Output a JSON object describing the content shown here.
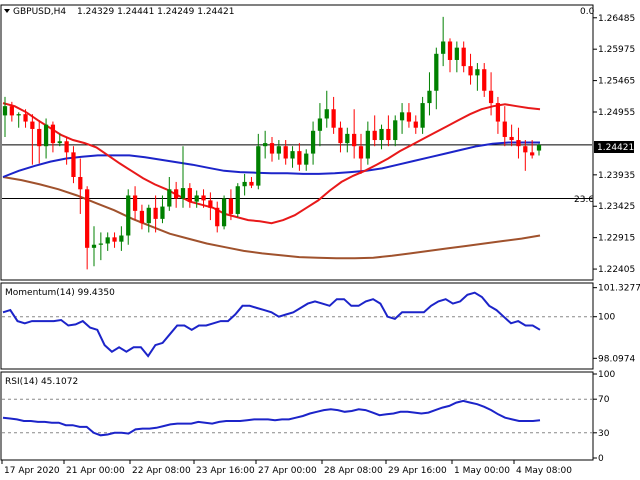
{
  "chart_data": [
    {
      "type": "candlestick",
      "header": {
        "symbol_timeframe": "GBPUSD,H4",
        "ohlc": "1.24329 1.24441 1.24249 1.24421"
      },
      "corner_value": "0.0",
      "level_label": "23.6",
      "current_price": "1.24421",
      "y_ticks": [
        "1.26485",
        "1.25975",
        "1.25465",
        "1.24955",
        "1.24421",
        "1.23935",
        "1.23425",
        "1.22915",
        "1.22405"
      ],
      "ylim": [
        1.2226,
        1.2666
      ],
      "levels": {
        "current": 1.24421,
        "fib_23_6": 1.2355
      },
      "candles": [
        {
          "o": 1.249,
          "h": 1.252,
          "l": 1.2455,
          "c": 1.2505
        },
        {
          "o": 1.2505,
          "h": 1.2512,
          "l": 1.248,
          "c": 1.249
        },
        {
          "o": 1.249,
          "h": 1.2495,
          "l": 1.247,
          "c": 1.2492
        },
        {
          "o": 1.2492,
          "h": 1.25,
          "l": 1.247,
          "c": 1.248
        },
        {
          "o": 1.248,
          "h": 1.2492,
          "l": 1.241,
          "c": 1.2468
        },
        {
          "o": 1.2468,
          "h": 1.2482,
          "l": 1.2412,
          "c": 1.244
        },
        {
          "o": 1.244,
          "h": 1.2485,
          "l": 1.242,
          "c": 1.2475
        },
        {
          "o": 1.2475,
          "h": 1.248,
          "l": 1.243,
          "c": 1.2445
        },
        {
          "o": 1.2445,
          "h": 1.246,
          "l": 1.244,
          "c": 1.2448
        },
        {
          "o": 1.2448,
          "h": 1.2455,
          "l": 1.241,
          "c": 1.243
        },
        {
          "o": 1.243,
          "h": 1.244,
          "l": 1.238,
          "c": 1.239
        },
        {
          "o": 1.239,
          "h": 1.242,
          "l": 1.233,
          "c": 1.237
        },
        {
          "o": 1.237,
          "h": 1.2375,
          "l": 1.224,
          "c": 1.2275
        },
        {
          "o": 1.2275,
          "h": 1.231,
          "l": 1.2245,
          "c": 1.228
        },
        {
          "o": 1.228,
          "h": 1.23,
          "l": 1.2255,
          "c": 1.2282
        },
        {
          "o": 1.2282,
          "h": 1.23,
          "l": 1.227,
          "c": 1.2292
        },
        {
          "o": 1.2292,
          "h": 1.23,
          "l": 1.2275,
          "c": 1.2285
        },
        {
          "o": 1.2285,
          "h": 1.231,
          "l": 1.227,
          "c": 1.2295
        },
        {
          "o": 1.2295,
          "h": 1.237,
          "l": 1.228,
          "c": 1.236
        },
        {
          "o": 1.236,
          "h": 1.2375,
          "l": 1.232,
          "c": 1.2335
        },
        {
          "o": 1.2335,
          "h": 1.2345,
          "l": 1.2305,
          "c": 1.2315
        },
        {
          "o": 1.2315,
          "h": 1.2345,
          "l": 1.23,
          "c": 1.234
        },
        {
          "o": 1.234,
          "h": 1.236,
          "l": 1.23,
          "c": 1.2322
        },
        {
          "o": 1.2322,
          "h": 1.236,
          "l": 1.2315,
          "c": 1.2342
        },
        {
          "o": 1.2342,
          "h": 1.239,
          "l": 1.2335,
          "c": 1.237
        },
        {
          "o": 1.237,
          "h": 1.2382,
          "l": 1.234,
          "c": 1.2355
        },
        {
          "o": 1.2355,
          "h": 1.244,
          "l": 1.234,
          "c": 1.2372
        },
        {
          "o": 1.2372,
          "h": 1.238,
          "l": 1.234,
          "c": 1.235
        },
        {
          "o": 1.235,
          "h": 1.2368,
          "l": 1.234,
          "c": 1.236
        },
        {
          "o": 1.236,
          "h": 1.237,
          "l": 1.234,
          "c": 1.2352
        },
        {
          "o": 1.2352,
          "h": 1.2365,
          "l": 1.232,
          "c": 1.234
        },
        {
          "o": 1.234,
          "h": 1.235,
          "l": 1.23,
          "c": 1.231
        },
        {
          "o": 1.231,
          "h": 1.236,
          "l": 1.2305,
          "c": 1.2355
        },
        {
          "o": 1.2355,
          "h": 1.237,
          "l": 1.232,
          "c": 1.233
        },
        {
          "o": 1.233,
          "h": 1.238,
          "l": 1.2325,
          "c": 1.2375
        },
        {
          "o": 1.2375,
          "h": 1.2395,
          "l": 1.236,
          "c": 1.2382
        },
        {
          "o": 1.2382,
          "h": 1.239,
          "l": 1.2372,
          "c": 1.2376
        },
        {
          "o": 1.2376,
          "h": 1.246,
          "l": 1.237,
          "c": 1.244
        },
        {
          "o": 1.244,
          "h": 1.2465,
          "l": 1.242,
          "c": 1.2445
        },
        {
          "o": 1.2445,
          "h": 1.2455,
          "l": 1.2415,
          "c": 1.2428
        },
        {
          "o": 1.2428,
          "h": 1.245,
          "l": 1.2418,
          "c": 1.244
        },
        {
          "o": 1.244,
          "h": 1.245,
          "l": 1.241,
          "c": 1.242
        },
        {
          "o": 1.242,
          "h": 1.244,
          "l": 1.2405,
          "c": 1.2432
        },
        {
          "o": 1.2432,
          "h": 1.2445,
          "l": 1.24,
          "c": 1.241
        },
        {
          "o": 1.241,
          "h": 1.2435,
          "l": 1.24,
          "c": 1.2428
        },
        {
          "o": 1.2428,
          "h": 1.248,
          "l": 1.241,
          "c": 1.2465
        },
        {
          "o": 1.2465,
          "h": 1.251,
          "l": 1.244,
          "c": 1.2485
        },
        {
          "o": 1.2485,
          "h": 1.253,
          "l": 1.247,
          "c": 1.25
        },
        {
          "o": 1.25,
          "h": 1.252,
          "l": 1.246,
          "c": 1.247
        },
        {
          "o": 1.247,
          "h": 1.248,
          "l": 1.243,
          "c": 1.2445
        },
        {
          "o": 1.2445,
          "h": 1.247,
          "l": 1.243,
          "c": 1.246
        },
        {
          "o": 1.246,
          "h": 1.25,
          "l": 1.242,
          "c": 1.244
        },
        {
          "o": 1.244,
          "h": 1.246,
          "l": 1.2395,
          "c": 1.242
        },
        {
          "o": 1.242,
          "h": 1.248,
          "l": 1.241,
          "c": 1.2465
        },
        {
          "o": 1.2465,
          "h": 1.249,
          "l": 1.244,
          "c": 1.245
        },
        {
          "o": 1.245,
          "h": 1.2475,
          "l": 1.2435,
          "c": 1.2468
        },
        {
          "o": 1.2468,
          "h": 1.249,
          "l": 1.244,
          "c": 1.245
        },
        {
          "o": 1.245,
          "h": 1.249,
          "l": 1.244,
          "c": 1.2482
        },
        {
          "o": 1.2482,
          "h": 1.251,
          "l": 1.246,
          "c": 1.2495
        },
        {
          "o": 1.2495,
          "h": 1.251,
          "l": 1.247,
          "c": 1.248
        },
        {
          "o": 1.248,
          "h": 1.249,
          "l": 1.246,
          "c": 1.247
        },
        {
          "o": 1.247,
          "h": 1.252,
          "l": 1.246,
          "c": 1.251
        },
        {
          "o": 1.251,
          "h": 1.256,
          "l": 1.249,
          "c": 1.253
        },
        {
          "o": 1.253,
          "h": 1.26,
          "l": 1.25,
          "c": 1.259
        },
        {
          "o": 1.259,
          "h": 1.265,
          "l": 1.257,
          "c": 1.261
        },
        {
          "o": 1.261,
          "h": 1.2615,
          "l": 1.256,
          "c": 1.258
        },
        {
          "o": 1.258,
          "h": 1.261,
          "l": 1.256,
          "c": 1.26
        },
        {
          "o": 1.26,
          "h": 1.261,
          "l": 1.256,
          "c": 1.257
        },
        {
          "o": 1.257,
          "h": 1.259,
          "l": 1.254,
          "c": 1.2555
        },
        {
          "o": 1.2555,
          "h": 1.2575,
          "l": 1.253,
          "c": 1.2565
        },
        {
          "o": 1.2565,
          "h": 1.2575,
          "l": 1.252,
          "c": 1.253
        },
        {
          "o": 1.253,
          "h": 1.256,
          "l": 1.249,
          "c": 1.251
        },
        {
          "o": 1.251,
          "h": 1.252,
          "l": 1.246,
          "c": 1.248
        },
        {
          "o": 1.248,
          "h": 1.2505,
          "l": 1.244,
          "c": 1.2455
        },
        {
          "o": 1.2455,
          "h": 1.2475,
          "l": 1.244,
          "c": 1.245
        },
        {
          "o": 1.245,
          "h": 1.247,
          "l": 1.242,
          "c": 1.244
        },
        {
          "o": 1.244,
          "h": 1.245,
          "l": 1.24,
          "c": 1.243
        },
        {
          "o": 1.243,
          "h": 1.245,
          "l": 1.242,
          "c": 1.2425
        },
        {
          "o": 1.24329,
          "h": 1.24441,
          "l": 1.24249,
          "c": 1.24421
        }
      ],
      "ma_fast": [
        1.251,
        1.2505,
        1.2495,
        1.2482,
        1.247,
        1.2458,
        1.245,
        1.2445,
        1.2438,
        1.2425,
        1.2412,
        1.24,
        1.2388,
        1.2378,
        1.237,
        1.236,
        1.235,
        1.2345,
        1.234,
        1.233,
        1.2325,
        1.232,
        1.2318,
        1.2315,
        1.232,
        1.2328,
        1.234,
        1.2352,
        1.2368,
        1.2382,
        1.2392,
        1.24,
        1.241,
        1.242,
        1.2432,
        1.2442,
        1.2452,
        1.2462,
        1.2472,
        1.2482,
        1.2492,
        1.25,
        1.2505,
        1.2508,
        1.2505,
        1.2502,
        1.25
      ],
      "ma_mid": [
        1.239,
        1.24,
        1.2408,
        1.2415,
        1.242,
        1.2423,
        1.2425,
        1.2425,
        1.2425,
        1.2422,
        1.2418,
        1.2414,
        1.241,
        1.2405,
        1.24,
        1.2398,
        1.2397,
        1.2396,
        1.2396,
        1.2395,
        1.2395,
        1.2396,
        1.2398,
        1.24,
        1.2404,
        1.241,
        1.2416,
        1.2422,
        1.2428,
        1.2434,
        1.244,
        1.2444,
        1.2446,
        1.2446,
        1.2446
      ],
      "ma_slow": [
        1.239,
        1.2385,
        1.2378,
        1.237,
        1.236,
        1.2348,
        1.2336,
        1.2322,
        1.231,
        1.2298,
        1.229,
        1.2282,
        1.2276,
        1.227,
        1.2266,
        1.2263,
        1.226,
        1.2259,
        1.2258,
        1.2258,
        1.2259,
        1.2262,
        1.2266,
        1.227,
        1.2274,
        1.2278,
        1.2282,
        1.2286,
        1.229,
        1.2295
      ],
      "x_labels": [
        "17 Apr 2020",
        "21 Apr 00:00",
        "22 Apr 08:00",
        "23 Apr 16:00",
        "27 Apr 00:00",
        "28 Apr 08:00",
        "29 Apr 16:00",
        "1 May 00:00",
        "4 May 08:00"
      ],
      "colors": {
        "bull": "#008000",
        "bear": "#ff0000",
        "ma_fast": "#e8191a",
        "ma_mid": "#1c24c9",
        "ma_slow": "#a0522d",
        "hline": "#000000"
      }
    },
    {
      "type": "line",
      "title": "Momentum(14) 99.4350",
      "y_ticks": [
        "101.3277",
        "100",
        "98.0974"
      ],
      "ylim": [
        97.7,
        101.45
      ],
      "dashed_level": 100,
      "series": [
        {
          "values": [
            100.2,
            100.3,
            99.8,
            99.7,
            99.8,
            99.8,
            99.8,
            99.8,
            99.85,
            99.6,
            99.65,
            99.8,
            99.5,
            99.4,
            98.7,
            98.4,
            98.6,
            98.4,
            98.6,
            98.6,
            98.2,
            98.7,
            98.8,
            99.2,
            99.6,
            99.6,
            99.4,
            99.6,
            99.6,
            99.7,
            99.8,
            99.8,
            100.1,
            100.5,
            100.5,
            100.4,
            100.3,
            100.2,
            100.0,
            100.1,
            100.2,
            100.4,
            100.6,
            100.7,
            100.6,
            100.5,
            100.8,
            100.8,
            100.5,
            100.5,
            100.7,
            100.8,
            100.6,
            100.0,
            99.9,
            100.2,
            100.2,
            100.2,
            100.2,
            100.5,
            100.7,
            100.8,
            100.6,
            100.7,
            101.0,
            101.1,
            100.9,
            100.5,
            100.3,
            100.0,
            99.7,
            99.8,
            99.6,
            99.6,
            99.4
          ],
          "color": "#1c24c9"
        }
      ]
    },
    {
      "type": "line",
      "title": "RSI(14) 45.1072",
      "y_ticks": [
        "100",
        "70",
        "30",
        "0"
      ],
      "ylim": [
        0,
        100
      ],
      "dashed_levels": [
        70,
        30
      ],
      "series": [
        {
          "values": [
            48,
            47,
            46,
            44,
            44,
            43,
            43,
            42,
            42,
            39,
            39,
            37,
            37,
            30,
            27,
            28,
            30,
            30,
            29,
            34,
            35,
            35,
            36,
            38,
            40,
            41,
            41,
            41,
            43,
            42,
            41,
            43,
            44,
            44,
            44,
            45,
            46,
            46,
            46,
            45,
            46,
            46,
            48,
            50,
            53,
            55,
            57,
            58,
            57,
            55,
            56,
            58,
            57,
            54,
            51,
            52,
            53,
            55,
            55,
            54,
            53,
            54,
            57,
            60,
            62,
            66,
            68,
            66,
            64,
            61,
            57,
            52,
            48,
            46,
            44,
            44,
            44,
            45
          ],
          "color": "#1c24c9"
        }
      ]
    }
  ]
}
